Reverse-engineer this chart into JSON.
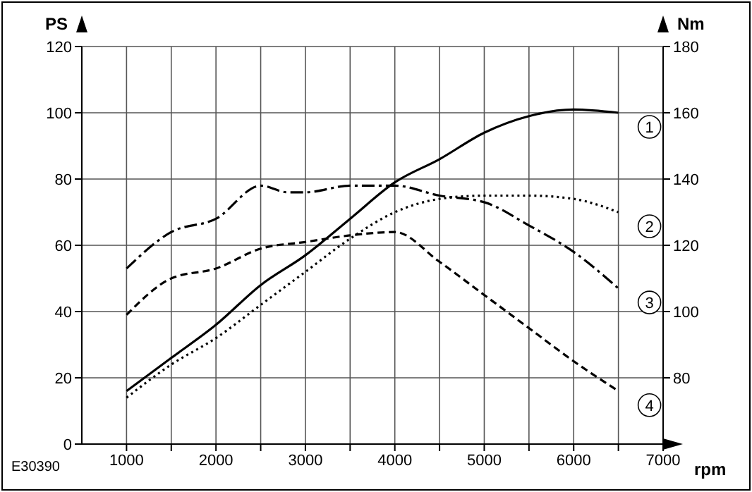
{
  "chart_data": {
    "type": "line",
    "xlabel": "rpm",
    "ylabel": "PS",
    "y2label": "Nm",
    "x": [
      1000,
      1500,
      2000,
      2500,
      3000,
      3500,
      4000,
      4500,
      5000,
      5500,
      6000,
      6500
    ],
    "series": [
      {
        "name": "1",
        "color": "#000000",
        "line_style": "solid",
        "values": [
          16,
          26,
          36,
          48,
          57,
          68,
          79,
          86,
          94,
          99,
          101,
          100
        ]
      },
      {
        "name": "2",
        "color": "#000000",
        "line_style": "dotted",
        "values": [
          14,
          24,
          32,
          42,
          52,
          62,
          70,
          74,
          75,
          75,
          74,
          70
        ]
      },
      {
        "name": "3",
        "color": "#000000",
        "line_style": "dashdot",
        "axis": "y2",
        "x": [
          1000,
          1500,
          2000,
          2500,
          2800,
          3000,
          3500,
          4000,
          4500,
          5000,
          5500,
          6000,
          6500
        ],
        "values": [
          113,
          124,
          128,
          138,
          136,
          136,
          138,
          138,
          135,
          133,
          126,
          118,
          107
        ]
      },
      {
        "name": "4",
        "color": "#000000",
        "line_style": "dashed",
        "axis": "y2",
        "values": [
          99,
          110,
          113,
          119,
          121,
          123,
          124,
          115,
          105,
          95,
          85,
          76
        ]
      }
    ],
    "xlim": [
      500,
      7000
    ],
    "xticks": [
      1000,
      {
        "value": 1500,
        "label": null
      },
      2000,
      {
        "value": 2500,
        "label": null
      },
      3000,
      {
        "value": 3500,
        "label": null
      },
      4000,
      {
        "value": 4500,
        "label": null
      },
      5000,
      {
        "value": 5500,
        "label": null
      },
      6000,
      {
        "value": 6500,
        "label": null
      },
      7000
    ],
    "ylim": [
      0,
      120
    ],
    "yticks": [
      0,
      20,
      40,
      60,
      80,
      100,
      120
    ],
    "y2lim": [
      60,
      180
    ],
    "y2ticks": [
      80,
      100,
      120,
      140,
      160,
      180
    ],
    "grid": true,
    "marker": "none",
    "annotations": [
      "E30390"
    ]
  }
}
